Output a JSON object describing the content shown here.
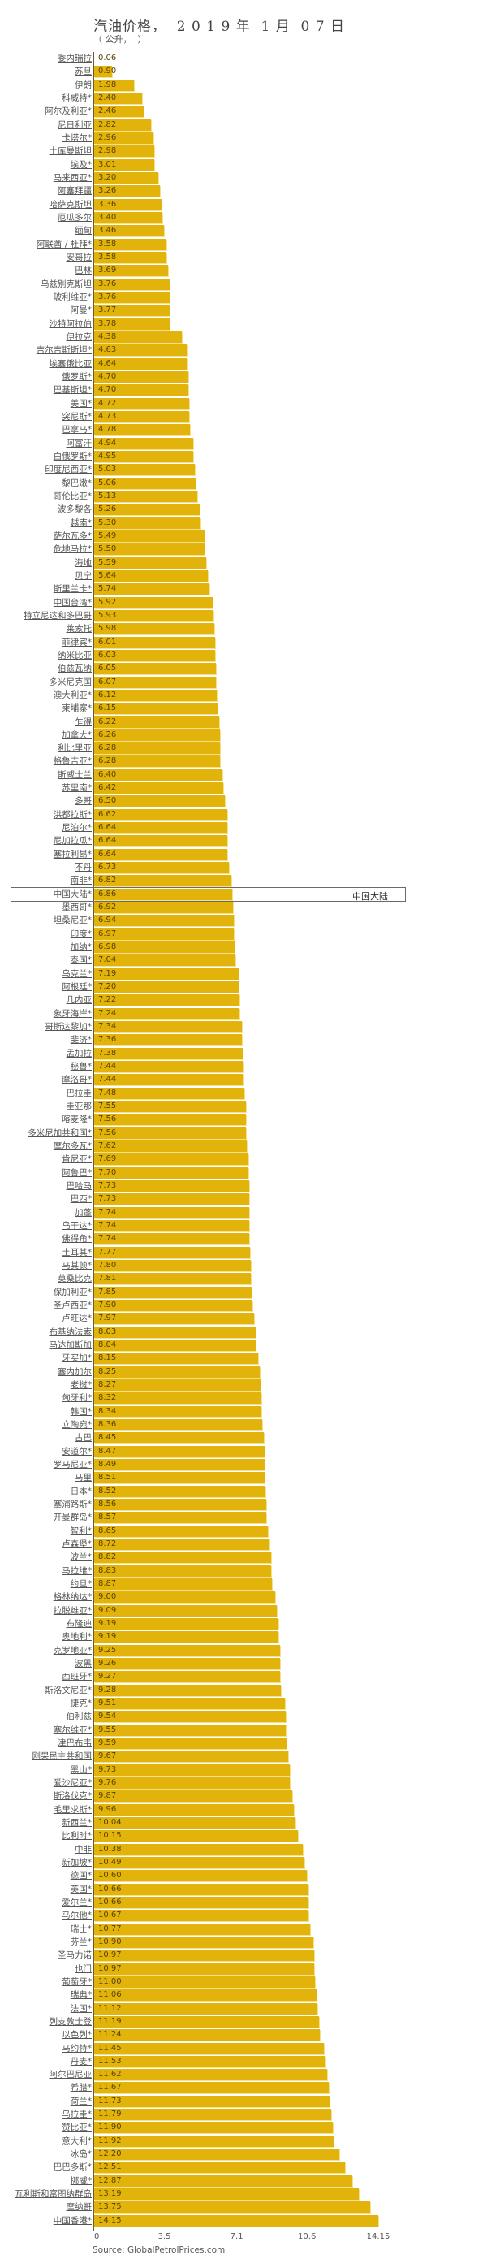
{
  "header": {
    "title": "汽油价格，  2 0 1 9 年  1 月  0 7 日",
    "subtitle": "（ 公升，  ）"
  },
  "highlight": {
    "row_label": "中国大陆*",
    "side_label": "中国大陆"
  },
  "source": "Source: GlobalPetrolPrices.com",
  "colors": {
    "bar": "#e2b40b",
    "bar_highlight": "#f4e08a",
    "axis": "#6b5a2a"
  },
  "chart_data": {
    "type": "bar",
    "orientation": "horizontal",
    "title": "汽油价格， 2019年1月07日",
    "subtitle": "（公升， ）",
    "xlabel": "",
    "ylabel": "",
    "xlim": [
      0,
      14.15
    ],
    "x_ticks": [
      "0",
      "3.5",
      "7.1",
      "10.6",
      "14.15"
    ],
    "grid": false,
    "legend": null,
    "source": "Source: GlobalPetrolPrices.com",
    "categories": [
      "委内瑞拉",
      "苏旦",
      "伊朗",
      "科威特*",
      "阿尔及利亚*",
      "尼日利亚",
      "卡塔尔*",
      "土库曼斯坦",
      "埃及*",
      "马来西亚*",
      "阿塞拜疆",
      "哈萨克斯坦",
      "厄瓜多尔",
      "缅甸",
      "阿联酋 / 杜拜*",
      "安哥拉",
      "巴林",
      "乌兹别克斯坦",
      "玻利维亚*",
      "阿曼*",
      "沙特阿拉伯",
      "伊拉克",
      "吉尔吉斯斯坦*",
      "埃塞俄比亚",
      "俄罗斯*",
      "巴基斯坦*",
      "美国*",
      "突尼斯*",
      "巴拿马*",
      "阿富汗",
      "白俄罗斯*",
      "印度尼西亚*",
      "黎巴嫩*",
      "哥伦比亚*",
      "波多黎各",
      "越南*",
      "萨尔瓦多*",
      "危地马拉*",
      "海地",
      "贝宁",
      "斯里兰卡*",
      "中国台湾*",
      "特立尼达和多巴哥",
      "莱索托",
      "菲律宾*",
      "纳米比亚",
      "伯兹瓦纳",
      "多米尼克国",
      "澳大利亚*",
      "柬埔寨*",
      "乍得",
      "加拿大*",
      "利比里亚",
      "格鲁吉亚*",
      "斯威士兰",
      "苏里南*",
      "多哥",
      "洪都拉斯*",
      "尼泊尔*",
      "尼加拉瓜*",
      "塞拉利昂*",
      "不丹",
      "南非*",
      "中国大陆*",
      "墨西哥*",
      "坦桑尼亚*",
      "印度*",
      "加纳*",
      "泰国*",
      "乌克兰*",
      "阿根廷*",
      "几内亚",
      "象牙海岸*",
      "哥斯达黎加*",
      "斐济*",
      "孟加拉",
      "秘鲁*",
      "摩洛哥*",
      "巴拉圭",
      "圭亚那",
      "喀麦隆*",
      "多米尼加共和国*",
      "摩尔多瓦*",
      "肯尼亚*",
      "阿鲁巴*",
      "巴哈马",
      "巴西*",
      "加蓬",
      "乌干达*",
      "佛得角*",
      "土耳其*",
      "马其顿*",
      "莫桑比克",
      "保加利亚*",
      "圣卢西亚*",
      "卢旺达*",
      "布基纳法索",
      "马达加斯加",
      "牙买加*",
      "塞内加尔",
      "老挝*",
      "匈牙利*",
      "韩国*",
      "立陶宛*",
      "古巴",
      "安道尔*",
      "罗马尼亚*",
      "马里",
      "日本*",
      "塞浦路斯*",
      "开曼群岛*",
      "智利*",
      "卢森堡*",
      "波兰*",
      "马拉维*",
      "约旦*",
      "格林纳达*",
      "拉脱维亚*",
      "布隆迪",
      "奥地利*",
      "克罗地亚*",
      "波黑",
      "西班牙*",
      "斯洛文尼亚*",
      "捷克*",
      "伯利兹",
      "塞尔维亚*",
      "津巴布韦",
      "刚果民主共和国",
      "黑山*",
      "爱沙尼亚*",
      "斯洛伐克*",
      "毛里求斯*",
      "新西兰*",
      "比利时*",
      "中非",
      "新加坡*",
      "德国*",
      "英国*",
      "爱尔兰*",
      "马尔他*",
      "瑞士*",
      "芬兰*",
      "圣马力诺",
      "也门",
      "葡萄牙*",
      "瑞典*",
      "法国*",
      "列支敦士登",
      "以色列*",
      "马约特*",
      "丹麦*",
      "阿尔巴尼亚",
      "希腊*",
      "荷兰*",
      "乌拉圭*",
      "赞比亚*",
      "意大利*",
      "冰岛*",
      "巴巴多斯*",
      "挪威*",
      "瓦利斯和富图纳群岛",
      "摩纳哥",
      "中国香港*"
    ],
    "values": [
      0.06,
      0.9,
      1.98,
      2.4,
      2.46,
      2.82,
      2.96,
      2.98,
      3.01,
      3.2,
      3.26,
      3.36,
      3.4,
      3.46,
      3.58,
      3.58,
      3.69,
      3.76,
      3.76,
      3.77,
      3.78,
      4.38,
      4.63,
      4.64,
      4.7,
      4.7,
      4.72,
      4.73,
      4.78,
      4.94,
      4.95,
      5.03,
      5.06,
      5.13,
      5.26,
      5.3,
      5.49,
      5.5,
      5.59,
      5.64,
      5.74,
      5.92,
      5.93,
      5.98,
      6.01,
      6.03,
      6.05,
      6.07,
      6.12,
      6.15,
      6.22,
      6.26,
      6.28,
      6.28,
      6.4,
      6.42,
      6.5,
      6.62,
      6.64,
      6.64,
      6.64,
      6.73,
      6.82,
      6.86,
      6.92,
      6.94,
      6.97,
      6.98,
      7.04,
      7.19,
      7.2,
      7.22,
      7.24,
      7.34,
      7.36,
      7.38,
      7.44,
      7.44,
      7.48,
      7.55,
      7.56,
      7.56,
      7.62,
      7.69,
      7.7,
      7.73,
      7.73,
      7.74,
      7.74,
      7.74,
      7.77,
      7.8,
      7.81,
      7.85,
      7.9,
      7.97,
      8.03,
      8.04,
      8.15,
      8.25,
      8.27,
      8.32,
      8.34,
      8.36,
      8.45,
      8.47,
      8.49,
      8.51,
      8.52,
      8.56,
      8.57,
      8.65,
      8.72,
      8.82,
      8.83,
      8.87,
      9.0,
      9.09,
      9.19,
      9.19,
      9.25,
      9.26,
      9.27,
      9.28,
      9.51,
      9.54,
      9.55,
      9.59,
      9.67,
      9.73,
      9.76,
      9.87,
      9.96,
      10.04,
      10.15,
      10.38,
      10.49,
      10.6,
      10.66,
      10.66,
      10.67,
      10.77,
      10.9,
      10.97,
      10.97,
      11.0,
      11.06,
      11.12,
      11.19,
      11.24,
      11.45,
      11.53,
      11.62,
      11.67,
      11.73,
      11.79,
      11.9,
      11.92,
      12.2,
      12.51,
      12.87,
      13.19,
      13.75,
      14.15
    ],
    "value_labels": [
      "0.06",
      "0.90",
      "1.98",
      "2.40",
      "2.46",
      "2.82",
      "2.96",
      "2.98",
      "3.01",
      "3.20",
      "3.26",
      "3.36",
      "3.40",
      "3.46",
      "3.58",
      "3.58",
      "3.69",
      "3.76",
      "3.76",
      "3.77",
      "3.78",
      "4.38",
      "4.63",
      "4.64",
      "4.70",
      "4.70",
      "4.72",
      "4.73",
      "4.78",
      "4.94",
      "4.95",
      "5.03",
      "5.06",
      "5.13",
      "5.26",
      "5.30",
      "5.49",
      "5.50",
      "5.59",
      "5.64",
      "5.74",
      "5.92",
      "5.93",
      "5.98",
      "6.01",
      "6.03",
      "6.05",
      "6.07",
      "6.12",
      "6.15",
      "6.22",
      "6.26",
      "6.28",
      "6.28",
      "6.40",
      "6.42",
      "6.50",
      "6.62",
      "6.64",
      "6.64",
      "6.64",
      "6.73",
      "6.82",
      "6.86",
      "6.92",
      "6.94",
      "6.97",
      "6.98",
      "7.04",
      "7.19",
      "7.20",
      "7.22",
      "7.24",
      "7.34",
      "7.36",
      "7.38",
      "7.44",
      "7.44",
      "7.48",
      "7.55",
      "7.56",
      "7.56",
      "7.62",
      "7.69",
      "7.70",
      "7.73",
      "7.73",
      "7.74",
      "7.74",
      "7.74",
      "7.77",
      "7.80",
      "7.81",
      "7.85",
      "7.90",
      "7.97",
      "8.03",
      "8.04",
      "8.15",
      "8.25",
      "8.27",
      "8.32",
      "8.34",
      "8.36",
      "8.45",
      "8.47",
      "8.49",
      "8.51",
      "8.52",
      "8.56",
      "8.57",
      "8.65",
      "8.72",
      "8.82",
      "8.83",
      "8.87",
      "9.00",
      "9.09",
      "9.19",
      "9.19",
      "9.25",
      "9.26",
      "9.27",
      "9.28",
      "9.51",
      "9.54",
      "9.55",
      "9.59",
      "9.67",
      "9.73",
      "9.76",
      "9.87",
      "9.96",
      "10.04",
      "10.15",
      "10.38",
      "10.49",
      "10.60",
      "10.66",
      "10.66",
      "10.67",
      "10.77",
      "10.90",
      "10.97",
      "10.97",
      "11.00",
      "11.06",
      "11.12",
      "11.19",
      "11.24",
      "11.45",
      "11.53",
      "11.62",
      "11.67",
      "11.73",
      "11.79",
      "11.90",
      "11.92",
      "12.20",
      "12.51",
      "12.87",
      "13.19",
      "13.75",
      "14.15"
    ]
  }
}
